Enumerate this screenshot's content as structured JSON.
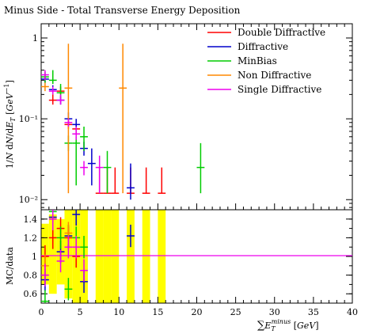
{
  "chart_data": {
    "type": "scatter",
    "title": "Minus Side - Total Transverse Energy Deposition",
    "ylabel_top": "1/N dN/dE_T [GeV^{-1}]",
    "ylabel_bottom": "MC/data",
    "xlabel": "∑E_T^minus [GeV]",
    "xlim": [
      0,
      40
    ],
    "ylim_top": [
      0.0075,
      1.5
    ],
    "ylim_bottom": [
      0.5,
      1.5
    ],
    "yscale_top": "log",
    "x_ticks": [
      0,
      5,
      10,
      15,
      20,
      25,
      30,
      35,
      40
    ],
    "y_ticks_top": [
      0.01,
      0.1,
      1
    ],
    "y_ticks_top_labels": [
      "10⁻²",
      "10⁻¹",
      "1"
    ],
    "y_ticks_bottom": [
      0.6,
      0.8,
      1,
      1.2,
      1.4
    ],
    "legend_position": "top-right",
    "series": [
      {
        "name": "Double Diffractive",
        "color": "#ff0000",
        "points": [
          [
            1.5,
            0.17,
            0.15,
            0.2
          ],
          [
            2.5,
            0.22,
            0.2,
            0.25
          ],
          [
            3.5,
            0.085,
            0.075,
            0.095
          ],
          [
            4.5,
            0.075,
            0.065,
            0.085
          ],
          [
            7.5,
            0.012,
            0.012,
            0.025
          ],
          [
            8.5,
            0.012,
            0.012,
            0.025
          ],
          [
            9.5,
            0.012,
            0.012,
            0.025
          ],
          [
            11.5,
            0.012,
            0.012,
            0.025
          ],
          [
            13.5,
            0.012,
            0.012,
            0.025
          ],
          [
            15.5,
            0.012,
            0.012,
            0.025
          ]
        ],
        "ratio": [
          [
            0.5,
            1.0
          ],
          [
            1.5,
            1.2
          ],
          [
            2.5,
            1.3
          ],
          [
            3.5,
            1.2
          ],
          [
            4.5,
            1.0
          ]
        ]
      },
      {
        "name": "Diffractive",
        "color": "#0000cc",
        "points": [
          [
            0.5,
            0.31,
            0.28,
            0.34
          ],
          [
            1.5,
            0.23,
            0.21,
            0.26
          ],
          [
            2.5,
            0.17,
            0.15,
            0.19
          ],
          [
            3.5,
            0.1,
            0.085,
            0.12
          ],
          [
            4.5,
            0.085,
            0.07,
            0.1
          ],
          [
            5.5,
            0.043,
            0.035,
            0.052
          ],
          [
            6.5,
            0.028,
            0.015,
            0.043
          ],
          [
            11.5,
            0.014,
            0.01,
            0.028
          ]
        ],
        "ratio": [
          [
            0.5,
            0.75
          ],
          [
            1.5,
            1.42
          ],
          [
            2.5,
            1.05
          ],
          [
            3.5,
            1.22
          ],
          [
            4.5,
            1.45
          ],
          [
            5.5,
            0.73
          ],
          [
            11.5,
            1.22
          ]
        ]
      },
      {
        "name": "MinBias",
        "color": "#00cc00",
        "points": [
          [
            0.5,
            0.33,
            0.28,
            0.38
          ],
          [
            1.5,
            0.3,
            0.27,
            0.4
          ],
          [
            2.5,
            0.21,
            0.18,
            0.27
          ],
          [
            3.5,
            0.05,
            0.04,
            0.062
          ],
          [
            4.5,
            0.05,
            0.015,
            0.06
          ],
          [
            5.5,
            0.06,
            0.04,
            0.08
          ],
          [
            8.5,
            0.025,
            0.012,
            0.04
          ],
          [
            20.5,
            0.025,
            0.012,
            0.05
          ]
        ],
        "ratio": [
          [
            0.5,
            0.52
          ],
          [
            1.5,
            1.48
          ],
          [
            2.5,
            1.2
          ],
          [
            3.5,
            0.65
          ],
          [
            4.5,
            1.2
          ],
          [
            5.5,
            1.1
          ]
        ]
      },
      {
        "name": "Non Diffractive",
        "color": "#ff8800",
        "points": [
          [
            0.5,
            0.25,
            0.22,
            0.28
          ],
          [
            3.5,
            0.24,
            0.012,
            0.85
          ],
          [
            10.5,
            0.24,
            0.012,
            0.85
          ]
        ],
        "ratio": [
          [
            0.5,
            0.9
          ],
          [
            3.5,
            1.25
          ]
        ]
      },
      {
        "name": "Single Diffractive",
        "color": "#ee00ee",
        "points": [
          [
            0.5,
            0.35,
            0.3,
            0.4
          ],
          [
            1.5,
            0.22,
            0.2,
            0.25
          ],
          [
            2.5,
            0.17,
            0.15,
            0.2
          ],
          [
            3.5,
            0.09,
            0.08,
            0.1
          ],
          [
            4.5,
            0.065,
            0.055,
            0.08
          ],
          [
            5.5,
            0.025,
            0.02,
            0.03
          ],
          [
            7.5,
            0.025,
            0.012,
            0.035
          ]
        ],
        "ratio": [
          [
            0.5,
            0.8
          ],
          [
            1.5,
            1.4
          ],
          [
            2.5,
            0.95
          ],
          [
            3.5,
            1.1
          ],
          [
            4.5,
            1.1
          ],
          [
            5.5,
            0.85
          ]
        ]
      }
    ],
    "uncertainty_band_color": "#ffff00",
    "uncertainty_band": [
      [
        0,
        1,
        0.7,
        1.35
      ],
      [
        1,
        2,
        0.6,
        1.45
      ],
      [
        2,
        3,
        0.7,
        1.4
      ],
      [
        3,
        4,
        0.55,
        1.5
      ],
      [
        4,
        5,
        0.5,
        1.5
      ],
      [
        5,
        6,
        0.5,
        1.5
      ],
      [
        7,
        8,
        0.5,
        1.5
      ],
      [
        8,
        9,
        0.5,
        1.5
      ],
      [
        9,
        10,
        0.5,
        1.5
      ],
      [
        11,
        12,
        0.5,
        1.5
      ],
      [
        13,
        14,
        0.5,
        1.5
      ],
      [
        15,
        16,
        0.5,
        1.5
      ]
    ]
  }
}
